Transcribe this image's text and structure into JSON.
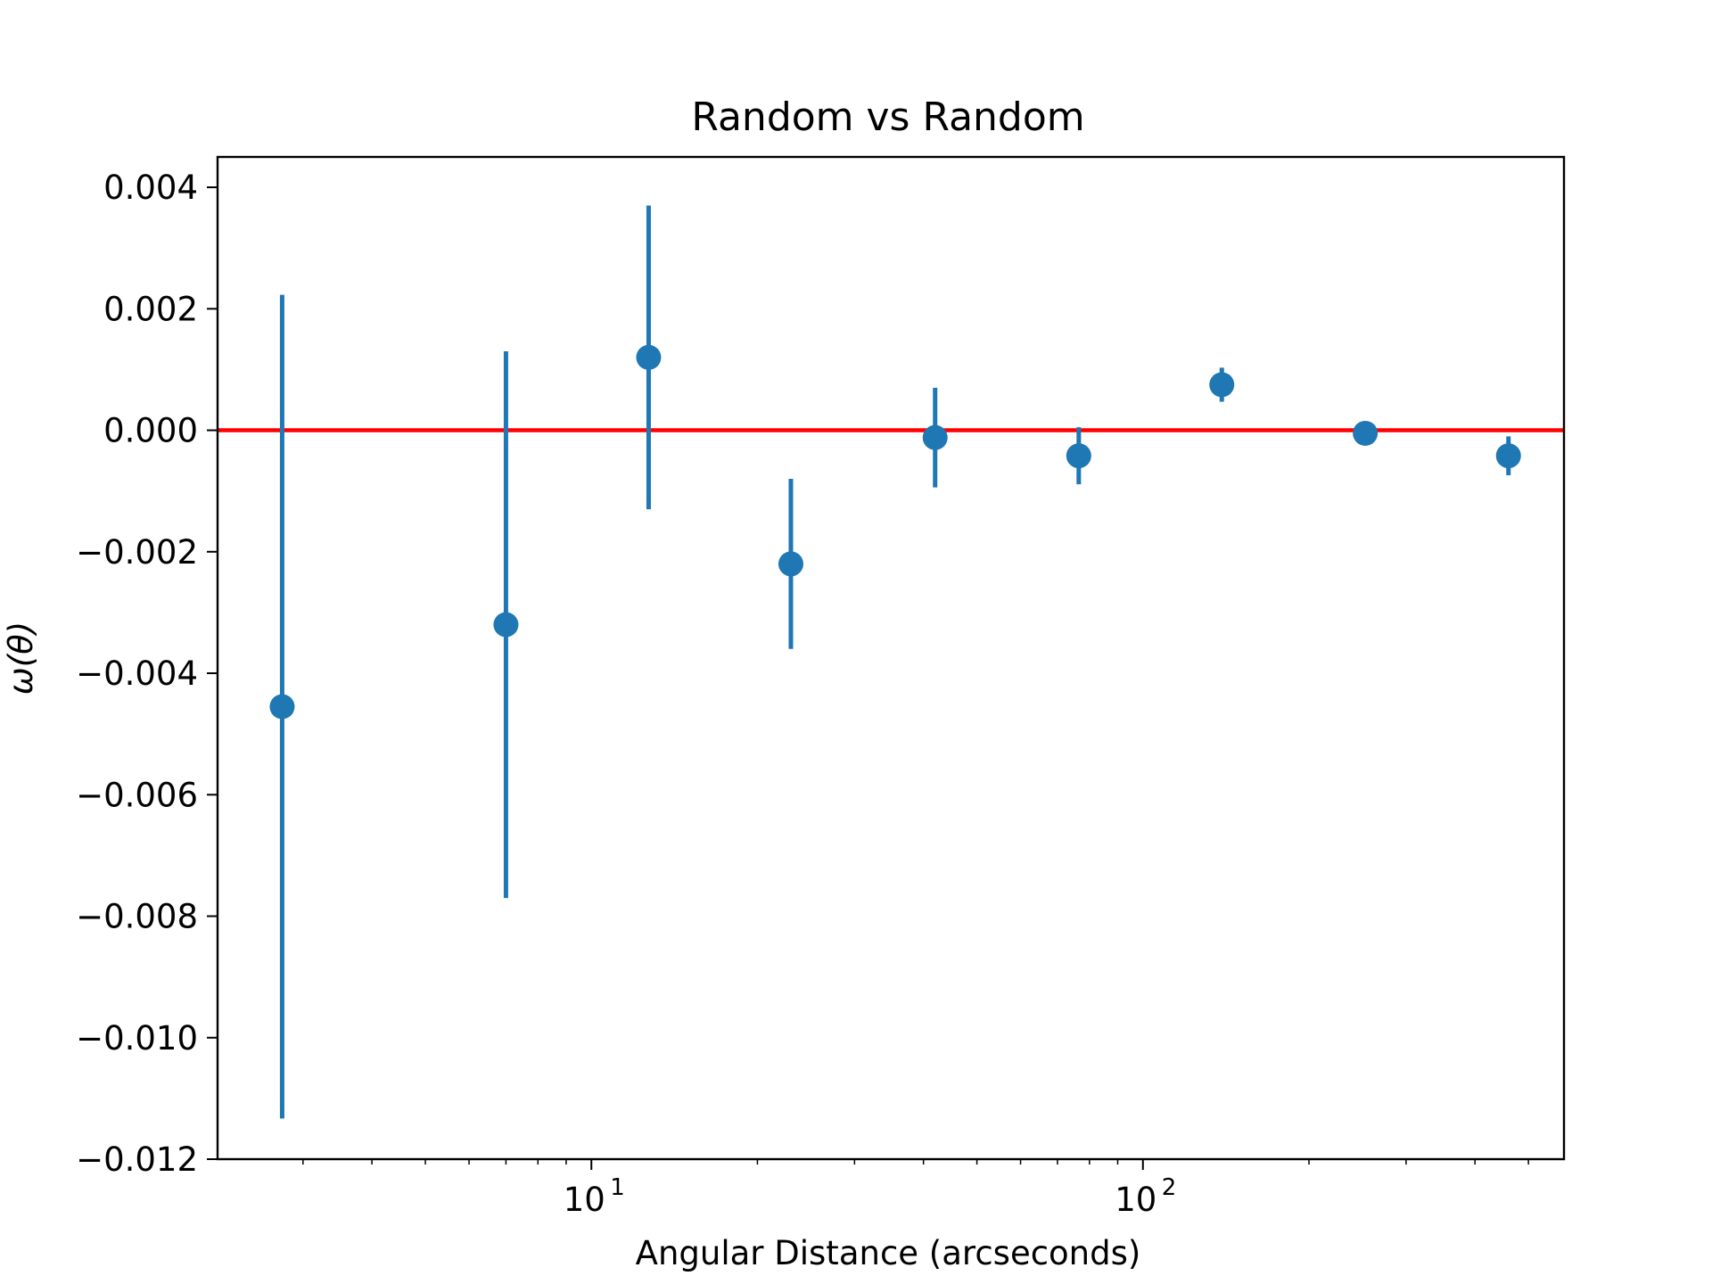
{
  "chart_data": {
    "type": "scatter",
    "title": "Random vs Random",
    "xlabel": "Angular Distance (arcseconds)",
    "ylabel": "ω(θ)",
    "xscale": "log",
    "xlim": [
      2.1,
      580
    ],
    "ylim": [
      -0.012,
      0.0045
    ],
    "grid": false,
    "legend": "none",
    "x_ticks": [
      {
        "value": 10,
        "base": "10",
        "exp": "1"
      },
      {
        "value": 100,
        "base": "10",
        "exp": "2"
      }
    ],
    "y_ticks": [
      {
        "value": 0.004,
        "label": "0.004"
      },
      {
        "value": 0.002,
        "label": "0.002"
      },
      {
        "value": 0.0,
        "label": "0.000"
      },
      {
        "value": -0.002,
        "label": "−0.002"
      },
      {
        "value": -0.004,
        "label": "−0.004"
      },
      {
        "value": -0.006,
        "label": "−0.006"
      },
      {
        "value": -0.008,
        "label": "−0.008"
      },
      {
        "value": -0.01,
        "label": "−0.010"
      },
      {
        "value": -0.012,
        "label": "−0.012"
      }
    ],
    "reference_line": {
      "y": 0.0,
      "color": "#ff0000"
    },
    "series": [
      {
        "color": "#1f77b4",
        "points": [
          {
            "x": 2.75,
            "y": -0.00455,
            "err": 0.00678
          },
          {
            "x": 7.0,
            "y": -0.0032,
            "err": 0.0045
          },
          {
            "x": 12.7,
            "y": 0.0012,
            "err": 0.0025
          },
          {
            "x": 23.0,
            "y": -0.0022,
            "err": 0.0014
          },
          {
            "x": 42.0,
            "y": -0.00012,
            "err": 0.00082
          },
          {
            "x": 76.5,
            "y": -0.00042,
            "err": 0.00047
          },
          {
            "x": 139.0,
            "y": 0.00075,
            "err": 0.00028
          },
          {
            "x": 253.0,
            "y": -5e-05,
            "err": 0.00012
          },
          {
            "x": 460.0,
            "y": -0.00042,
            "err": 0.00032
          }
        ]
      }
    ]
  }
}
